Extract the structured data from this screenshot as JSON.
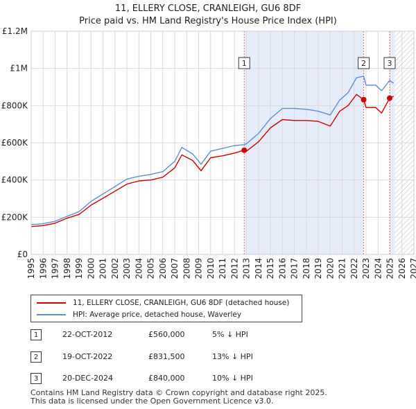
{
  "title_line1": "11, ELLERY CLOSE, CRANLEIGH, GU6 8DF",
  "title_line2": "Price paid vs. HM Land Registry's House Price Index (HPI)",
  "colors": {
    "property": "#cc0000",
    "hpi": "#5b8fd4",
    "shade": "#e6ecf9",
    "grid": "#d9d9d9",
    "marker_line": "#e06666"
  },
  "chart_data": {
    "type": "line",
    "title": "11, ELLERY CLOSE, CRANLEIGH, GU6 8DF — Price paid vs. HM Land Registry's House Price Index (HPI)",
    "xlim": [
      1995,
      2027
    ],
    "ylim": [
      0,
      1200000
    ],
    "y_ticks": [
      0,
      200000,
      400000,
      600000,
      800000,
      1000000,
      1200000
    ],
    "y_tick_labels": [
      "£0",
      "£200K",
      "£400K",
      "£600K",
      "£800K",
      "£1M",
      "£1.2M"
    ],
    "x_ticks": [
      1995,
      1996,
      1997,
      1998,
      1999,
      2000,
      2001,
      2002,
      2003,
      2004,
      2005,
      2006,
      2007,
      2008,
      2009,
      2010,
      2011,
      2012,
      2013,
      2014,
      2015,
      2016,
      2017,
      2018,
      2019,
      2020,
      2021,
      2022,
      2023,
      2024,
      2025,
      2026,
      2027
    ],
    "shaded_ranges": [
      [
        2012.81,
        2022.8
      ],
      [
        2024.97,
        2025.4
      ]
    ],
    "hatched_range": [
      2025.4,
      2027
    ],
    "series": [
      {
        "name": "11, ELLERY CLOSE, CRANLEIGH, GU6 8DF (detached house)",
        "color": "#cc0000",
        "x": [
          1995,
          1996,
          1997,
          1998,
          1999,
          2000,
          2001,
          2002,
          2003,
          2004,
          2005,
          2006,
          2007,
          2007.6,
          2008.5,
          2009.2,
          2010,
          2011,
          2012,
          2012.81,
          2013,
          2014,
          2015,
          2016,
          2017,
          2018,
          2019,
          2020,
          2020.8,
          2021.5,
          2022.2,
          2022.8,
          2023,
          2023.8,
          2024.3,
          2024.97,
          2025.3
        ],
        "y": [
          150000,
          155000,
          168000,
          195000,
          215000,
          265000,
          302000,
          340000,
          378000,
          395000,
          400000,
          415000,
          465000,
          535000,
          505000,
          450000,
          520000,
          530000,
          545000,
          560000,
          555000,
          605000,
          680000,
          725000,
          720000,
          720000,
          715000,
          690000,
          770000,
          800000,
          860000,
          831500,
          790000,
          790000,
          760000,
          840000,
          850000
        ]
      },
      {
        "name": "HPI: Average price, detached house, Waverley",
        "color": "#5b8fd4",
        "x": [
          1995,
          1996,
          1997,
          1998,
          1999,
          2000,
          2001,
          2002,
          2003,
          2004,
          2005,
          2006,
          2007,
          2007.6,
          2008.5,
          2009.2,
          2010,
          2011,
          2012,
          2012.81,
          2013,
          2014,
          2015,
          2016,
          2017,
          2018,
          2019,
          2020,
          2020.8,
          2021.5,
          2022.2,
          2022.8,
          2023,
          2023.8,
          2024.3,
          2024.97,
          2025.3
        ],
        "y": [
          160000,
          165000,
          178000,
          205000,
          230000,
          285000,
          325000,
          365000,
          405000,
          420000,
          430000,
          445000,
          500000,
          575000,
          540000,
          485000,
          555000,
          570000,
          585000,
          590000,
          595000,
          650000,
          730000,
          785000,
          785000,
          780000,
          770000,
          750000,
          830000,
          870000,
          950000,
          958000,
          910000,
          910000,
          880000,
          935000,
          920000
        ]
      }
    ],
    "sale_points": [
      {
        "label": "1",
        "x": 2012.81,
        "y": 560000
      },
      {
        "label": "2",
        "x": 2022.8,
        "y": 831500
      },
      {
        "label": "3",
        "x": 2024.97,
        "y": 840000
      }
    ]
  },
  "legend": {
    "property_label": "11, ELLERY CLOSE, CRANLEIGH, GU6 8DF (detached house)",
    "hpi_label": "HPI: Average price, detached house, Waverley"
  },
  "transactions": [
    {
      "num": "1",
      "date": "22-OCT-2012",
      "price": "£560,000",
      "hpi": "5% ↓ HPI"
    },
    {
      "num": "2",
      "date": "19-OCT-2022",
      "price": "£831,500",
      "hpi": "13% ↓ HPI"
    },
    {
      "num": "3",
      "date": "20-DEC-2024",
      "price": "£840,000",
      "hpi": "10% ↓ HPI"
    }
  ],
  "footer_line1": "Contains HM Land Registry data © Crown copyright and database right 2025.",
  "footer_line2": "This data is licensed under the Open Government Licence v3.0."
}
